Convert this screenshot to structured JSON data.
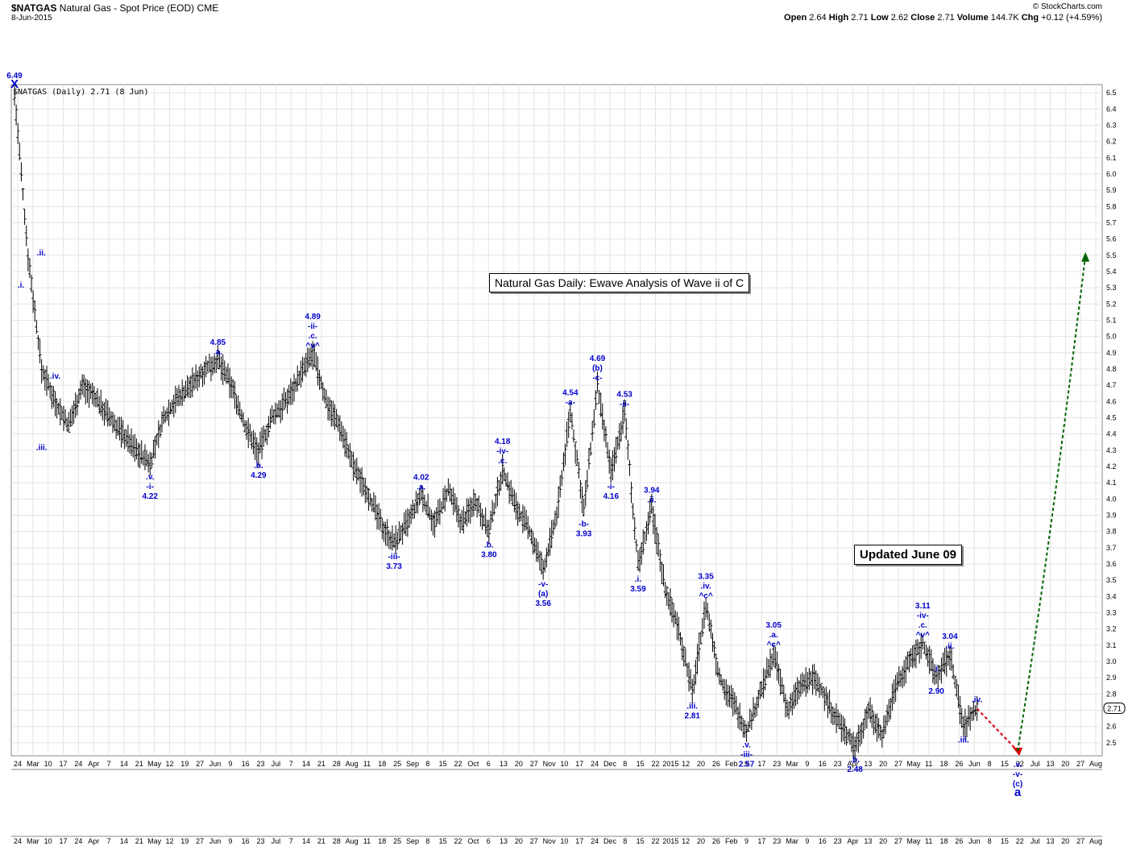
{
  "header": {
    "symbol": "$NATGAS",
    "description": "Natural Gas - Spot Price (EOD)",
    "exchange": "CME",
    "date": "8-Jun-2015",
    "copyright": "© StockCharts.com",
    "ohlc": {
      "open_label": "Open",
      "open": "2.64",
      "high_label": "High",
      "high": "2.71",
      "low_label": "Low",
      "low": "2.62",
      "close_label": "Close",
      "close": "2.71",
      "volume_label": "Volume",
      "volume": "144.7K",
      "chg_label": "Chg",
      "chg": "+0.12 (+4.59%)"
    },
    "legend": "$NATGAS (Daily) 2.71 (8 Jun)"
  },
  "annotations": {
    "title_box": "Natural Gas Daily: Ewave Analysis of Wave ii of C",
    "updated_box": "Updated June 09"
  },
  "colors": {
    "wave_labels": "#0000cc",
    "bars": "#000000",
    "projection_up": "#006400",
    "projection_down": "#dd0000",
    "grid": "#e4e4e4"
  },
  "chart_data": {
    "type": "ohlc",
    "ylim": [
      2.42,
      6.55
    ],
    "y_ticks": [
      2.5,
      2.6,
      2.7,
      2.8,
      2.9,
      3.0,
      3.1,
      3.2,
      3.3,
      3.4,
      3.5,
      3.6,
      3.7,
      3.8,
      3.9,
      4.0,
      4.1,
      4.2,
      4.3,
      4.4,
      4.5,
      4.6,
      4.7,
      4.8,
      4.9,
      5.0,
      5.1,
      5.2,
      5.3,
      5.4,
      5.5,
      5.6,
      5.7,
      5.8,
      5.9,
      6.0,
      6.1,
      6.2,
      6.3,
      6.4,
      6.5
    ],
    "last_price_tag": "2.71",
    "x_ticks": [
      "24",
      "Mar",
      "10",
      "17",
      "24",
      "Apr",
      "7",
      "14",
      "21",
      "May",
      "12",
      "19",
      "27",
      "Jun",
      "9",
      "16",
      "23",
      "Jul",
      "7",
      "14",
      "21",
      "28",
      "Aug",
      "11",
      "18",
      "25",
      "Sep",
      "8",
      "15",
      "22",
      "Oct",
      "6",
      "13",
      "20",
      "27",
      "Nov",
      "10",
      "17",
      "24",
      "Dec",
      "8",
      "15",
      "22",
      "2015",
      "12",
      "20",
      "26",
      "Feb",
      "9",
      "17",
      "23",
      "Mar",
      "9",
      "16",
      "23",
      "Apr",
      "13",
      "20",
      "27",
      "May",
      "11",
      "18",
      "26",
      "Jun",
      "8",
      "15",
      "22",
      "Jul",
      "13",
      "20",
      "27",
      "Aug"
    ],
    "price_path": [
      [
        0,
        6.49
      ],
      [
        2,
        5.5
      ],
      [
        4,
        4.8
      ],
      [
        6,
        4.6
      ],
      [
        8,
        4.45
      ],
      [
        10,
        4.7
      ],
      [
        12,
        4.62
      ],
      [
        14,
        4.5
      ],
      [
        16,
        4.4
      ],
      [
        18,
        4.3
      ],
      [
        20,
        4.22
      ],
      [
        22,
        4.5
      ],
      [
        24,
        4.62
      ],
      [
        26,
        4.7
      ],
      [
        28,
        4.8
      ],
      [
        30,
        4.85
      ],
      [
        32,
        4.7
      ],
      [
        34,
        4.45
      ],
      [
        36,
        4.29
      ],
      [
        38,
        4.5
      ],
      [
        40,
        4.6
      ],
      [
        42,
        4.75
      ],
      [
        44,
        4.89
      ],
      [
        46,
        4.6
      ],
      [
        48,
        4.45
      ],
      [
        50,
        4.2
      ],
      [
        52,
        4.05
      ],
      [
        54,
        3.85
      ],
      [
        56,
        3.73
      ],
      [
        58,
        3.85
      ],
      [
        60,
        4.02
      ],
      [
        62,
        3.85
      ],
      [
        64,
        4.05
      ],
      [
        66,
        3.85
      ],
      [
        68,
        4.0
      ],
      [
        70,
        3.8
      ],
      [
        72,
        4.18
      ],
      [
        74,
        3.95
      ],
      [
        76,
        3.8
      ],
      [
        78,
        3.56
      ],
      [
        80,
        3.9
      ],
      [
        82,
        4.54
      ],
      [
        84,
        3.93
      ],
      [
        86,
        4.69
      ],
      [
        88,
        4.16
      ],
      [
        90,
        4.53
      ],
      [
        92,
        3.59
      ],
      [
        94,
        3.94
      ],
      [
        96,
        3.45
      ],
      [
        98,
        3.2
      ],
      [
        100,
        2.81
      ],
      [
        102,
        3.35
      ],
      [
        104,
        2.9
      ],
      [
        106,
        2.75
      ],
      [
        108,
        2.57
      ],
      [
        110,
        2.8
      ],
      [
        112,
        3.05
      ],
      [
        114,
        2.7
      ],
      [
        116,
        2.85
      ],
      [
        118,
        2.9
      ],
      [
        120,
        2.75
      ],
      [
        122,
        2.6
      ],
      [
        124,
        2.48
      ],
      [
        126,
        2.7
      ],
      [
        128,
        2.55
      ],
      [
        130,
        2.85
      ],
      [
        132,
        3.0
      ],
      [
        134,
        3.11
      ],
      [
        136,
        2.9
      ],
      [
        138,
        3.04
      ],
      [
        140,
        2.6
      ],
      [
        142,
        2.71
      ]
    ],
    "wave_labels": [
      {
        "x": 0,
        "y": 6.49,
        "text": "6.49",
        "pos": "above2"
      },
      {
        "x": 0,
        "y": 6.49,
        "text": "X",
        "pos": "above1"
      },
      {
        "x": 0,
        "y": 5.3,
        "text": ".i.",
        "pos": "right"
      },
      {
        "x": 3,
        "y": 5.5,
        "text": ".ii.",
        "pos": "right"
      },
      {
        "x": 6,
        "y": 4.7,
        "text": ".iv.",
        "pos": "above"
      },
      {
        "x": 4,
        "y": 4.4,
        "text": ".iii.",
        "pos": "below"
      },
      {
        "x": 20,
        "y": 4.22,
        "text": ".v.",
        "pos": "below1"
      },
      {
        "x": 20,
        "y": 4.22,
        "text": "-i-",
        "pos": "below2"
      },
      {
        "x": 20,
        "y": 4.22,
        "text": "4.22",
        "pos": "below3"
      },
      {
        "x": 30,
        "y": 4.85,
        "text": "4.85",
        "pos": "above2"
      },
      {
        "x": 30,
        "y": 4.85,
        "text": ".a.",
        "pos": "above1"
      },
      {
        "x": 36,
        "y": 4.29,
        "text": ".b.",
        "pos": "below1"
      },
      {
        "x": 36,
        "y": 4.29,
        "text": "4.29",
        "pos": "below2"
      },
      {
        "x": 44,
        "y": 4.89,
        "text": "4.89",
        "pos": "above4"
      },
      {
        "x": 44,
        "y": 4.89,
        "text": "-ii-",
        "pos": "above3"
      },
      {
        "x": 44,
        "y": 4.89,
        "text": ".c.",
        "pos": "above2"
      },
      {
        "x": 44,
        "y": 4.89,
        "text": "^v^",
        "pos": "above1"
      },
      {
        "x": 56,
        "y": 3.73,
        "text": "-iii-",
        "pos": "below1"
      },
      {
        "x": 56,
        "y": 3.73,
        "text": "3.73",
        "pos": "below2"
      },
      {
        "x": 60,
        "y": 4.02,
        "text": "4.02",
        "pos": "above2"
      },
      {
        "x": 60,
        "y": 4.02,
        "text": ".a.",
        "pos": "above1"
      },
      {
        "x": 70,
        "y": 3.8,
        "text": ".b.",
        "pos": "below1"
      },
      {
        "x": 70,
        "y": 3.8,
        "text": "3.80",
        "pos": "below2"
      },
      {
        "x": 72,
        "y": 4.18,
        "text": "4.18",
        "pos": "above3"
      },
      {
        "x": 72,
        "y": 4.18,
        "text": "-iv-",
        "pos": "above2"
      },
      {
        "x": 72,
        "y": 4.18,
        "text": ".c.",
        "pos": "above1"
      },
      {
        "x": 78,
        "y": 3.56,
        "text": "-v-",
        "pos": "below1"
      },
      {
        "x": 78,
        "y": 3.56,
        "text": "(a)",
        "pos": "below2"
      },
      {
        "x": 78,
        "y": 3.56,
        "text": "3.56",
        "pos": "below3"
      },
      {
        "x": 82,
        "y": 4.54,
        "text": "4.54",
        "pos": "above2"
      },
      {
        "x": 82,
        "y": 4.54,
        "text": "-a-",
        "pos": "above1"
      },
      {
        "x": 84,
        "y": 3.93,
        "text": "-b-",
        "pos": "below1"
      },
      {
        "x": 84,
        "y": 3.93,
        "text": "3.93",
        "pos": "below2"
      },
      {
        "x": 86,
        "y": 4.69,
        "text": "4.69",
        "pos": "above3"
      },
      {
        "x": 86,
        "y": 4.69,
        "text": "(b)",
        "pos": "above2"
      },
      {
        "x": 86,
        "y": 4.69,
        "text": "-c-",
        "pos": "above1"
      },
      {
        "x": 88,
        "y": 4.16,
        "text": "-i-",
        "pos": "below1"
      },
      {
        "x": 88,
        "y": 4.16,
        "text": "4.16",
        "pos": "below2"
      },
      {
        "x": 90,
        "y": 4.53,
        "text": "4.53",
        "pos": "above2"
      },
      {
        "x": 90,
        "y": 4.53,
        "text": "-ii-",
        "pos": "above1"
      },
      {
        "x": 92,
        "y": 3.59,
        "text": ".i.",
        "pos": "below1"
      },
      {
        "x": 92,
        "y": 3.59,
        "text": "3.59",
        "pos": "below2"
      },
      {
        "x": 94,
        "y": 3.94,
        "text": "3.94",
        "pos": "above2"
      },
      {
        "x": 94,
        "y": 3.94,
        "text": ".ii.",
        "pos": "above1"
      },
      {
        "x": 100,
        "y": 2.81,
        "text": ".iii.",
        "pos": "below1"
      },
      {
        "x": 100,
        "y": 2.81,
        "text": "2.81",
        "pos": "below2"
      },
      {
        "x": 102,
        "y": 3.35,
        "text": "3.35",
        "pos": "above3"
      },
      {
        "x": 102,
        "y": 3.35,
        "text": ".iv.",
        "pos": "above2"
      },
      {
        "x": 102,
        "y": 3.35,
        "text": "^c^",
        "pos": "above1"
      },
      {
        "x": 108,
        "y": 2.57,
        "text": ".v.",
        "pos": "below1"
      },
      {
        "x": 108,
        "y": 2.57,
        "text": "-iii-",
        "pos": "below2"
      },
      {
        "x": 108,
        "y": 2.57,
        "text": "2.57",
        "pos": "below3"
      },
      {
        "x": 112,
        "y": 3.05,
        "text": "3.05",
        "pos": "above3"
      },
      {
        "x": 112,
        "y": 3.05,
        "text": ".a.",
        "pos": "above2"
      },
      {
        "x": 112,
        "y": 3.05,
        "text": "^c^",
        "pos": "above1"
      },
      {
        "x": 124,
        "y": 2.48,
        "text": ".b.",
        "pos": "below1"
      },
      {
        "x": 124,
        "y": 2.48,
        "text": "2.48",
        "pos": "below2"
      },
      {
        "x": 134,
        "y": 3.11,
        "text": "3.11",
        "pos": "above4"
      },
      {
        "x": 134,
        "y": 3.11,
        "text": "-iv-",
        "pos": "above3"
      },
      {
        "x": 134,
        "y": 3.11,
        "text": ".c.",
        "pos": "above2"
      },
      {
        "x": 134,
        "y": 3.11,
        "text": "^v^",
        "pos": "above1"
      },
      {
        "x": 138,
        "y": 3.04,
        "text": "3.04",
        "pos": "above2"
      },
      {
        "x": 138,
        "y": 3.04,
        "text": ".ii.",
        "pos": "above1"
      },
      {
        "x": 136,
        "y": 2.9,
        "text": ".i.",
        "pos": "above1"
      },
      {
        "x": 136,
        "y": 2.9,
        "text": "2.90",
        "pos": "below0"
      },
      {
        "x": 142,
        "y": 2.71,
        "text": ".iv.",
        "pos": "above1"
      },
      {
        "x": 140,
        "y": 2.6,
        "text": ".iii.",
        "pos": "below1"
      },
      {
        "x": 148,
        "y": 2.45,
        "text": ".v.",
        "pos": "below1"
      },
      {
        "x": 148,
        "y": 2.45,
        "text": "-v-",
        "pos": "below2"
      },
      {
        "x": 148,
        "y": 2.45,
        "text": "(c)",
        "pos": "below3"
      },
      {
        "x": 148,
        "y": 2.45,
        "text": "a",
        "pos": "below4"
      }
    ],
    "projection_down": [
      [
        142,
        2.71
      ],
      [
        148,
        2.45
      ]
    ],
    "projection_up": [
      [
        148,
        2.45
      ],
      [
        158,
        5.5
      ]
    ]
  }
}
